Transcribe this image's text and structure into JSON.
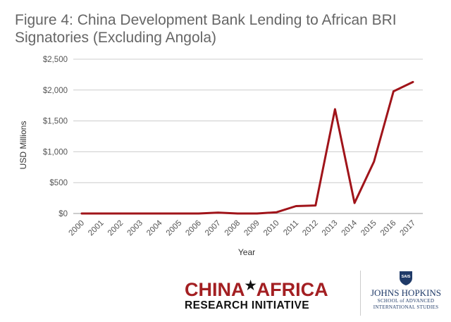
{
  "title": "Figure 4: China Development Bank Lending to African BRI Signatories (Excluding Angola)",
  "chart_data": {
    "type": "line",
    "title": "Figure 4: China Development Bank Lending to African BRI Signatories (Excluding Angola)",
    "xlabel": "Year",
    "ylabel": "USD Millions",
    "categories": [
      "2000",
      "2001",
      "2002",
      "2003",
      "2004",
      "2005",
      "2006",
      "2007",
      "2008",
      "2009",
      "2010",
      "2011",
      "2012",
      "2013",
      "2014",
      "2015",
      "2016",
      "2017"
    ],
    "series": [
      {
        "values": [
          0,
          0,
          0,
          0,
          0,
          0,
          0,
          15,
          0,
          0,
          20,
          120,
          130,
          1690,
          170,
          840,
          1980,
          2130
        ]
      }
    ],
    "ylim": [
      0,
      2500
    ],
    "yticks": [
      0,
      500,
      1000,
      1500,
      2000,
      2500
    ],
    "ytick_labels": [
      "$0",
      "$500",
      "$1,000",
      "$1,500",
      "$2,000",
      "$2,500"
    ],
    "grid": true,
    "legend": "none",
    "line_color": "#a0141a"
  },
  "footer": {
    "cari_part1": "CHINA",
    "cari_star": "★",
    "cari_part2": "AFRICA",
    "cari_line2": "RESEARCH INITIATIVE",
    "jhu_name": "JOHNS HOPKINS",
    "jhu_sub1": "SCHOOL of ADVANCED",
    "jhu_sub2": "INTERNATIONAL STUDIES",
    "jhu_shield_text": "SAIS"
  }
}
